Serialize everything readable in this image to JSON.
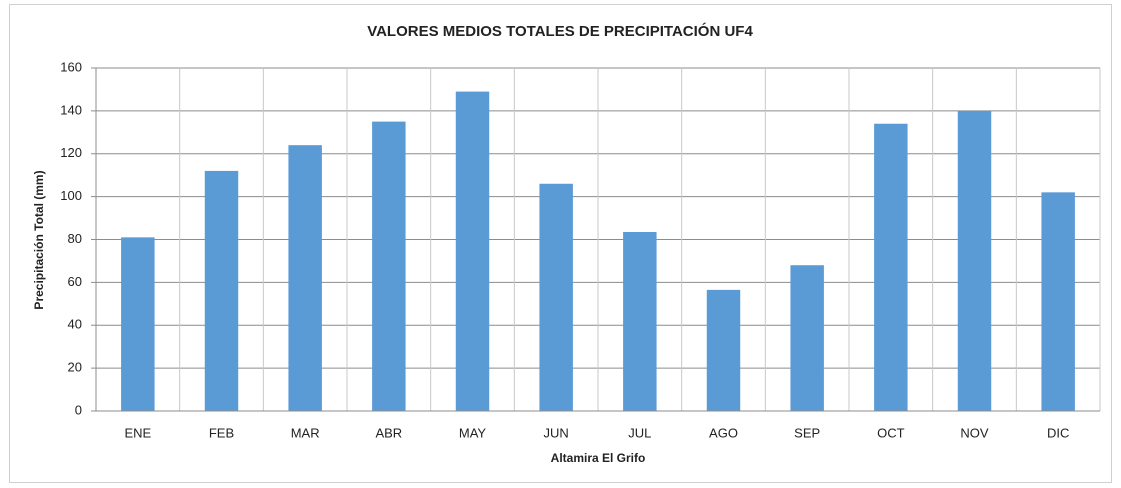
{
  "chart_data": {
    "type": "bar",
    "title": "VALORES MEDIOS TOTALES DE PRECIPITACIÓN  UF4",
    "x_label": "Altamira El Grifo",
    "y_label": "Precipitación  Total (mm)",
    "categories": [
      "ENE",
      "FEB",
      "MAR",
      "ABR",
      "MAY",
      "JUN",
      "JUL",
      "AGO",
      "SEP",
      "OCT",
      "NOV",
      "DIC"
    ],
    "values": [
      81,
      112,
      124,
      135,
      149,
      106,
      83.5,
      56.5,
      68,
      134,
      140,
      102
    ],
    "color": "#5b9bd5",
    "ylim": [
      0,
      160
    ],
    "yticks": [
      0,
      20,
      40,
      60,
      80,
      100,
      120,
      140,
      160
    ],
    "grid": true
  }
}
